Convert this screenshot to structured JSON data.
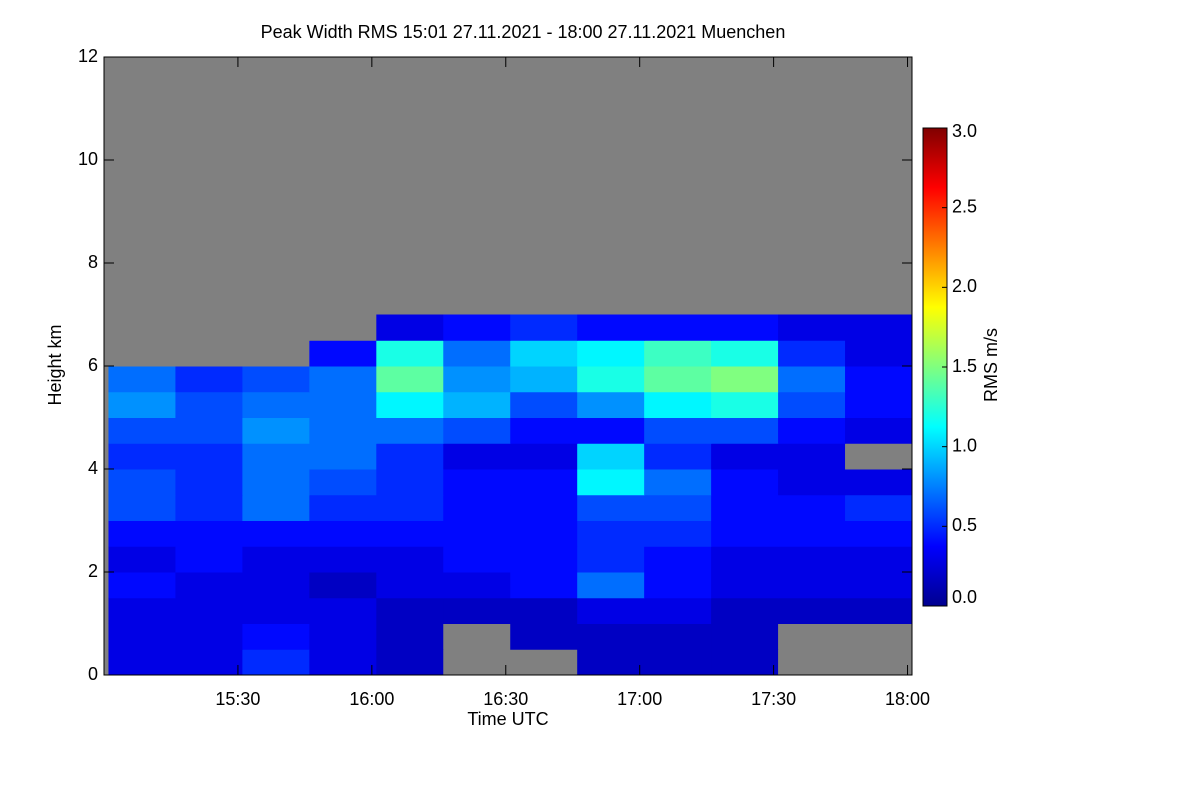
{
  "chart_data": {
    "type": "heatmap",
    "title": "Peak Width RMS   15:01 27.11.2021 - 18:00 27.11.2021 Muenchen",
    "x_label": "Time UTC",
    "y_label": "Height km",
    "colorbar_label": "RMS m/s",
    "colormap": "jet",
    "missing_color": "#808080",
    "x_bins": [
      901,
      916,
      931,
      946,
      961,
      976,
      991,
      1006,
      1021,
      1036,
      1051,
      1066,
      1081
    ],
    "y_bins": [
      0,
      0.5,
      1,
      1.5,
      2,
      2.5,
      3,
      3.5,
      4,
      4.5,
      5,
      5.5,
      6,
      6.5,
      7
    ],
    "z": [
      [
        0.3,
        0.3,
        0.5,
        0.3,
        0.2,
        null,
        null,
        0.2,
        0.2,
        0.2,
        null,
        null
      ],
      [
        0.3,
        0.3,
        0.4,
        0.3,
        0.2,
        null,
        0.2,
        0.2,
        0.2,
        0.2,
        null,
        null
      ],
      [
        0.3,
        0.3,
        0.3,
        0.3,
        0.2,
        0.2,
        0.2,
        0.3,
        0.3,
        0.2,
        0.2,
        0.2
      ],
      [
        0.4,
        0.3,
        0.3,
        0.2,
        0.3,
        0.3,
        0.4,
        0.7,
        0.4,
        0.3,
        0.3,
        0.3
      ],
      [
        0.3,
        0.4,
        0.3,
        0.3,
        0.3,
        0.4,
        0.4,
        0.5,
        0.4,
        0.3,
        0.3,
        0.3
      ],
      [
        0.4,
        0.4,
        0.4,
        0.4,
        0.4,
        0.4,
        0.4,
        0.5,
        0.5,
        0.4,
        0.4,
        0.4
      ],
      [
        0.6,
        0.5,
        0.7,
        0.5,
        0.5,
        0.4,
        0.4,
        0.6,
        0.6,
        0.4,
        0.4,
        0.5
      ],
      [
        0.6,
        0.5,
        0.7,
        0.6,
        0.5,
        0.4,
        0.4,
        1.1,
        0.7,
        0.4,
        0.3,
        0.3
      ],
      [
        0.5,
        0.5,
        0.7,
        0.7,
        0.5,
        0.3,
        0.3,
        1.0,
        0.5,
        0.3,
        0.3,
        null
      ],
      [
        0.6,
        0.6,
        0.8,
        0.7,
        0.7,
        0.6,
        0.4,
        0.4,
        0.6,
        0.6,
        0.4,
        0.3
      ],
      [
        0.8,
        0.6,
        0.7,
        0.7,
        1.1,
        0.9,
        0.6,
        0.8,
        1.1,
        1.2,
        0.6,
        0.4
      ],
      [
        0.7,
        0.5,
        0.6,
        0.7,
        1.4,
        0.8,
        0.9,
        1.2,
        1.4,
        1.5,
        0.7,
        0.4
      ],
      [
        null,
        null,
        null,
        0.4,
        1.2,
        0.7,
        1.0,
        1.1,
        1.3,
        1.2,
        0.5,
        0.3
      ],
      [
        null,
        null,
        null,
        null,
        0.3,
        0.4,
        0.5,
        0.4,
        0.4,
        0.4,
        0.3,
        0.3
      ]
    ],
    "xlim": [
      900,
      1081
    ],
    "xticks": [
      {
        "value": 930,
        "label": "15:30"
      },
      {
        "value": 960,
        "label": "16:00"
      },
      {
        "value": 990,
        "label": "16:30"
      },
      {
        "value": 1020,
        "label": "17:00"
      },
      {
        "value": 1050,
        "label": "17:30"
      },
      {
        "value": 1080,
        "label": "18:00"
      }
    ],
    "ylim": [
      0,
      12
    ],
    "yticks": [
      0,
      2,
      4,
      6,
      8,
      10,
      12
    ],
    "zlim": [
      0,
      3
    ],
    "zticks": [
      {
        "value": 0,
        "label": "0.0"
      },
      {
        "value": 0.5,
        "label": "0.5"
      },
      {
        "value": 1,
        "label": "1.0"
      },
      {
        "value": 1.5,
        "label": "1.5"
      },
      {
        "value": 2,
        "label": "2.0"
      },
      {
        "value": 2.5,
        "label": "2.5"
      },
      {
        "value": 3,
        "label": "3.0"
      }
    ]
  }
}
